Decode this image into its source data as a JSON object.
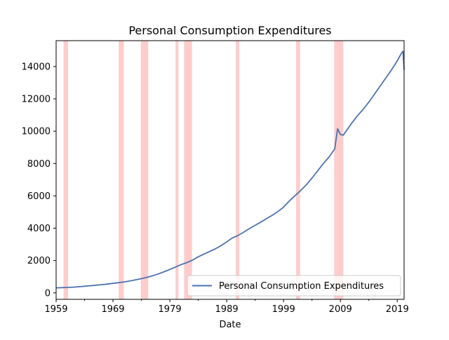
{
  "chart_data": {
    "type": "line",
    "title": "Personal Consumption Expenditures",
    "xlabel": "Date",
    "ylabel": "",
    "xlim": [
      1959,
      2020.2
    ],
    "ylim": [
      -400,
      15600
    ],
    "x_ticks": [
      {
        "value": 1959,
        "label": "1959"
      },
      {
        "value": 1969,
        "label": "1969"
      },
      {
        "value": 1979,
        "label": "1979"
      },
      {
        "value": 1989,
        "label": "1989"
      },
      {
        "value": 1999,
        "label": "1999"
      },
      {
        "value": 2009,
        "label": "2009"
      },
      {
        "value": 2019,
        "label": "2019"
      }
    ],
    "y_ticks": [
      {
        "value": 0,
        "label": "0"
      },
      {
        "value": 2000,
        "label": "2000"
      },
      {
        "value": 4000,
        "label": "4000"
      },
      {
        "value": 6000,
        "label": "6000"
      },
      {
        "value": 8000,
        "label": "8000"
      },
      {
        "value": 10000,
        "label": "10000"
      },
      {
        "value": 12000,
        "label": "12000"
      },
      {
        "value": 14000,
        "label": "14000"
      }
    ],
    "grid": false,
    "legend": {
      "placement": "lower-right",
      "entries": [
        "Personal Consumption Expenditures"
      ]
    },
    "recession_shading": [
      {
        "start": 1960.3,
        "end": 1961.1
      },
      {
        "start": 1970.0,
        "end": 1970.9
      },
      {
        "start": 1973.9,
        "end": 1975.2
      },
      {
        "start": 1980.0,
        "end": 1980.5
      },
      {
        "start": 1981.5,
        "end": 1982.9
      },
      {
        "start": 1990.6,
        "end": 1991.2
      },
      {
        "start": 2001.2,
        "end": 2001.9
      },
      {
        "start": 2007.9,
        "end": 2009.5
      }
    ],
    "series": [
      {
        "name": "Personal Consumption Expenditures",
        "color": "#4c72b0",
        "x": [
          1959,
          1960,
          1961,
          1962,
          1963,
          1964,
          1965,
          1966,
          1967,
          1968,
          1969,
          1970,
          1971,
          1972,
          1973,
          1974,
          1975,
          1976,
          1977,
          1978,
          1979,
          1980,
          1981,
          1982,
          1983,
          1984,
          1985,
          1986,
          1987,
          1988,
          1989,
          1990,
          1991,
          1992,
          1993,
          1994,
          1995,
          1996,
          1997,
          1998,
          1999,
          2000,
          2001,
          2002,
          2003,
          2004,
          2005,
          2006,
          2007,
          2008,
          2008.5,
          2009,
          2009.5,
          2010,
          2011,
          2012,
          2013,
          2014,
          2015,
          2016,
          2017,
          2018,
          2019,
          2019.7,
          2020.0,
          2020.2
        ],
        "values": [
          310,
          325,
          335,
          355,
          380,
          410,
          440,
          475,
          505,
          545,
          590,
          630,
          680,
          740,
          810,
          880,
          960,
          1060,
          1175,
          1310,
          1450,
          1600,
          1750,
          1870,
          2030,
          2230,
          2400,
          2560,
          2720,
          2920,
          3150,
          3400,
          3550,
          3760,
          3980,
          4180,
          4380,
          4590,
          4800,
          5030,
          5300,
          5680,
          6010,
          6330,
          6680,
          7100,
          7550,
          8000,
          8400,
          8900,
          10150,
          9800,
          9750,
          10000,
          10500,
          10950,
          11350,
          11800,
          12300,
          12800,
          13300,
          13800,
          14350,
          14800,
          14950,
          13800
        ]
      }
    ]
  }
}
